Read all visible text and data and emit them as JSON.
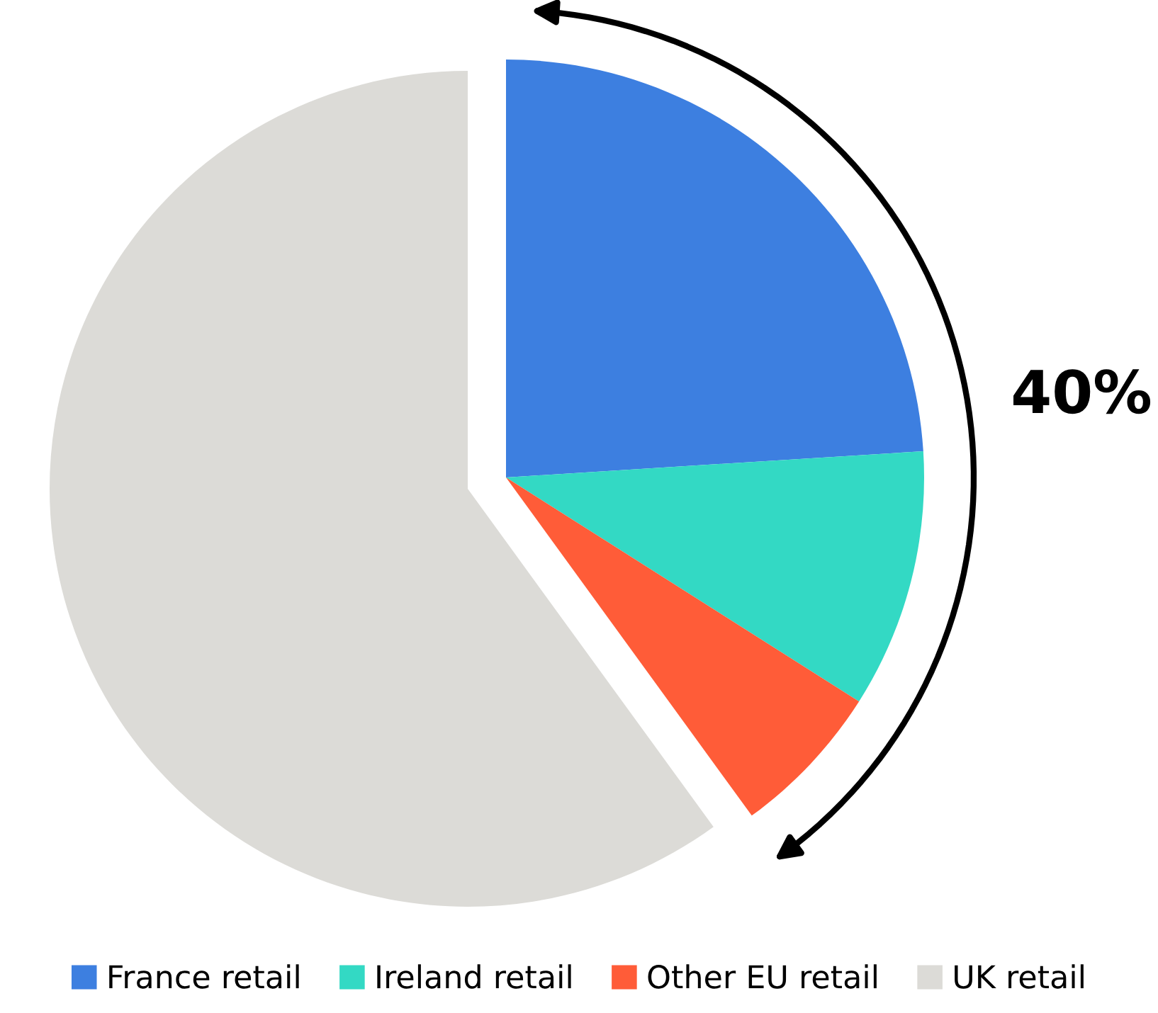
{
  "chart_data": {
    "type": "pie",
    "categories": [
      "France retail",
      "Ireland retail",
      "Other EU retail",
      "UK retail"
    ],
    "values": [
      24,
      10,
      6,
      60
    ],
    "colors": [
      "#3d7fe0",
      "#33d9c4",
      "#ff5c38",
      "#dcdbd7"
    ],
    "annotations": [
      "40%"
    ],
    "legend": "bottom"
  }
}
